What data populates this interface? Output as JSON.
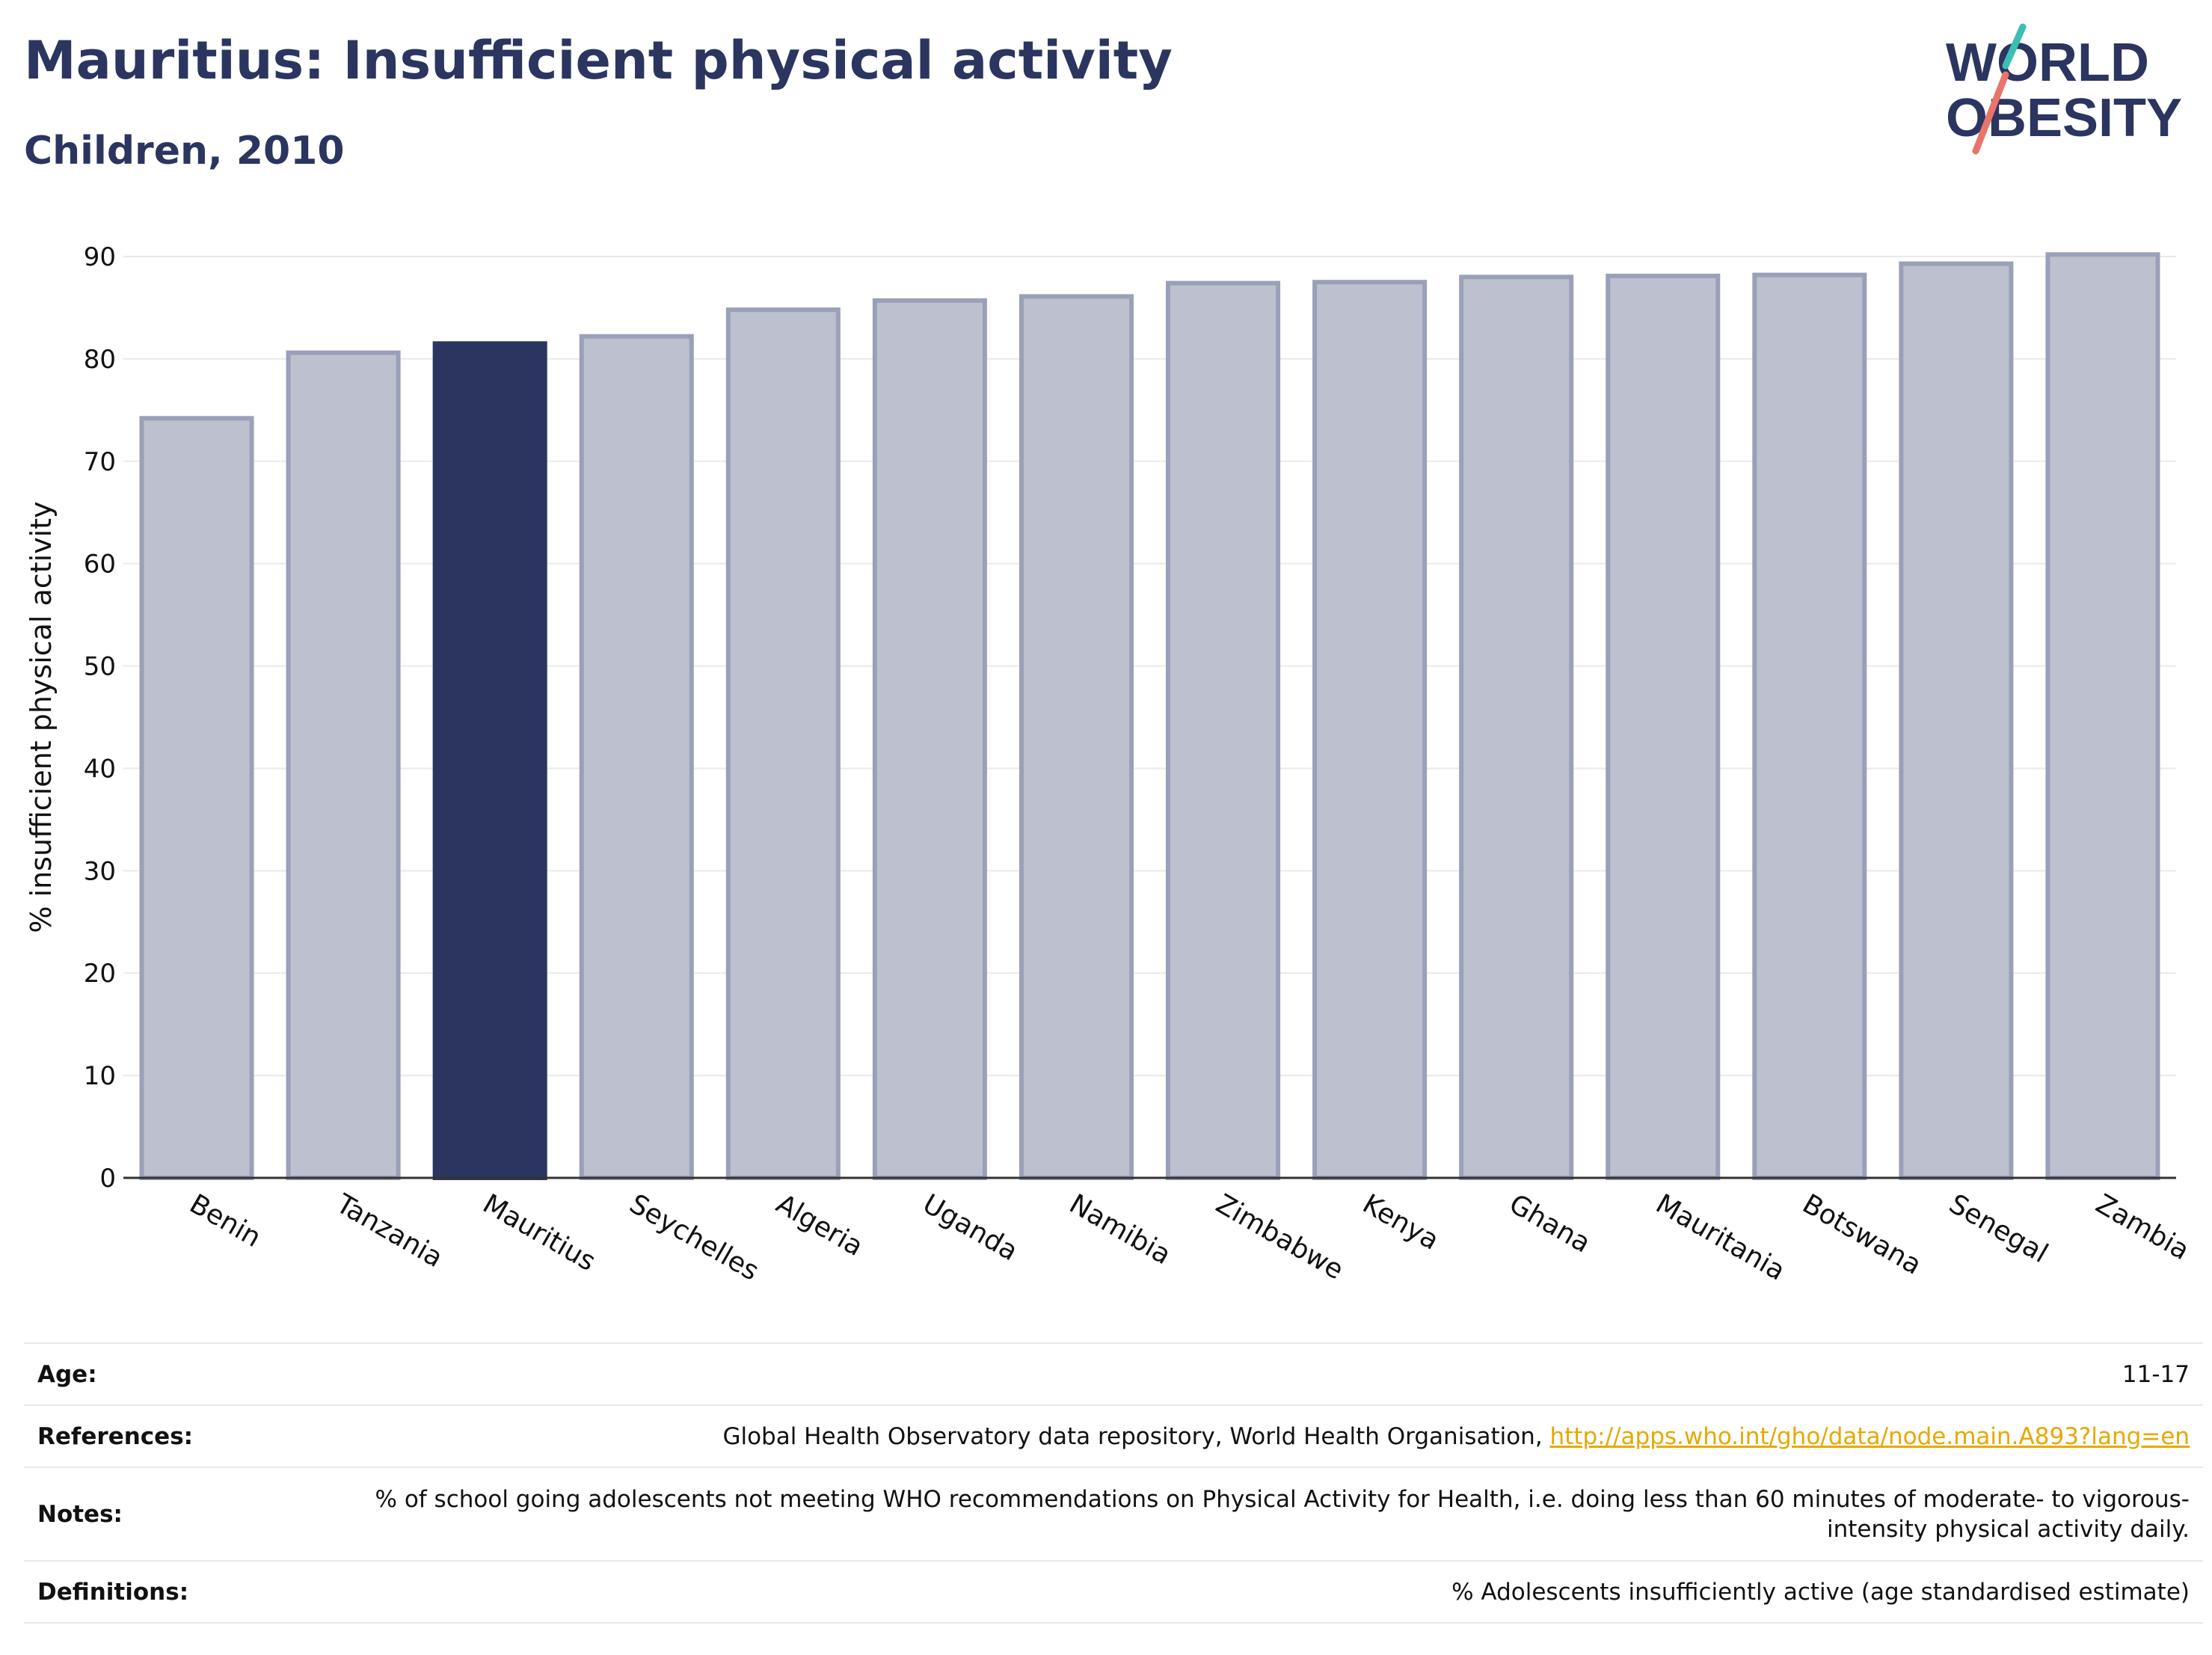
{
  "header": {
    "title": "Mauritius: Insufficient physical activity",
    "subtitle": "Children, 2010"
  },
  "logo": {
    "line1": "WORLD",
    "line2": "OBESITY",
    "icon": "world-obesity-logo"
  },
  "colors": {
    "highlight": "#2b3560",
    "bar_fill": "#bdc0ce",
    "bar_stroke": "#9aa0b8",
    "text": "#2b3560",
    "link": "#e7a800"
  },
  "chart_data": {
    "type": "bar",
    "title": "Mauritius: Insufficient physical activity",
    "subtitle": "Children, 2010",
    "xlabel": "",
    "ylabel": "% insufficient physical activity",
    "ylim": [
      0,
      90
    ],
    "yticks": [
      0,
      10,
      20,
      30,
      40,
      50,
      60,
      70,
      80,
      90
    ],
    "grid": true,
    "highlight": "Mauritius",
    "categories": [
      "Benin",
      "Tanzania",
      "Mauritius",
      "Seychelles",
      "Algeria",
      "Uganda",
      "Namibia",
      "Zimbabwe",
      "Kenya",
      "Ghana",
      "Mauritania",
      "Botswana",
      "Senegal",
      "Zambia"
    ],
    "values": [
      74.2,
      80.6,
      81.5,
      82.2,
      84.8,
      85.7,
      86.1,
      87.4,
      87.5,
      88.0,
      88.1,
      88.2,
      89.3,
      90.2
    ]
  },
  "info": [
    {
      "key": "Age:",
      "value": "11-17"
    },
    {
      "key": "References:",
      "value": "Global Health Observatory data repository, World Health Organisation, ",
      "link": "http://apps.who.int/gho/data/node.main.A893?lang=en"
    },
    {
      "key": "Notes:",
      "value": "% of school going adolescents not meeting WHO recommendations on Physical Activity for Health, i.e. doing less than 60 minutes of moderate- to vigorous-intensity physical activity daily."
    },
    {
      "key": "Definitions:",
      "value": "% Adolescents insufficiently active (age standardised estimate)"
    }
  ]
}
